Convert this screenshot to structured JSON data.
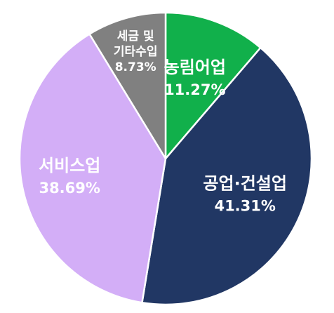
{
  "chart_data": {
    "type": "pie",
    "start_angle_deg": 0,
    "direction": "clockwise",
    "slices": [
      {
        "name": "농림어업",
        "lines": [
          "농림어업"
        ],
        "value": 11.27,
        "label": "11.27%",
        "color": "#11b04b"
      },
      {
        "name": "공업·건설업",
        "lines": [
          "공업·건설업"
        ],
        "value": 41.31,
        "label": "41.31%",
        "color": "#213764"
      },
      {
        "name": "서비스업",
        "lines": [
          "서비스업"
        ],
        "value": 38.69,
        "label": "38.69%",
        "color": "#d3aef7"
      },
      {
        "name": "세금 및 기타수입",
        "lines": [
          "세금 및",
          "기타수입"
        ],
        "value": 8.73,
        "label": "8.73%",
        "color": "#808080"
      }
    ]
  }
}
